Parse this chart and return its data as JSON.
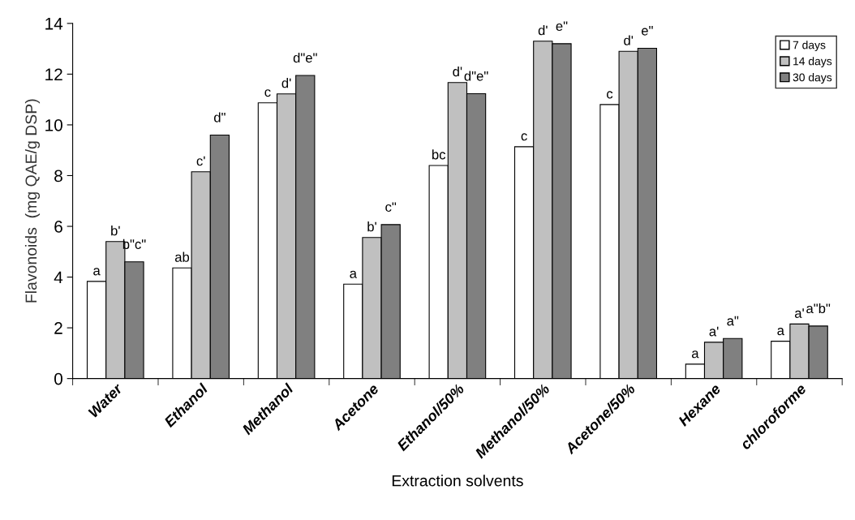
{
  "chart_data": {
    "type": "bar",
    "xlabel": "Extraction solvents",
    "ylabel": "Flavonoids  (mg QAE/g DSP)",
    "categories": [
      "Water",
      "Ethanol",
      "Methanol",
      "Acetone",
      "Ethanol/50%",
      "Methanol/50%",
      "Acetone/50%",
      "Hexane",
      "chloroforme"
    ],
    "series": [
      {
        "name": "7 days",
        "color": "#ffffff",
        "values": [
          3.83,
          4.36,
          10.87,
          3.72,
          8.4,
          9.14,
          10.8,
          0.57,
          1.47
        ],
        "value_labels": [
          "a",
          "ab",
          "c",
          "a",
          "bc",
          "c",
          "c",
          "a",
          "a"
        ]
      },
      {
        "name": "14 days",
        "color": "#c0c0c0",
        "values": [
          5.4,
          8.15,
          11.22,
          5.56,
          11.67,
          13.3,
          12.9,
          1.43,
          2.15
        ],
        "value_labels": [
          "b'",
          "c'",
          "d'",
          "b'",
          "d'",
          "d'",
          "d'",
          "a'",
          "a'"
        ]
      },
      {
        "name": "30 days",
        "color": "#808080",
        "values": [
          4.6,
          9.6,
          11.95,
          6.07,
          11.23,
          13.2,
          13.02,
          1.58,
          2.07
        ],
        "value_labels": [
          "b\"c\"",
          "d\"",
          "d\"e\"",
          "c\"",
          "d\"e\"",
          "e\"",
          "e\"",
          "a\"",
          "a\"b\""
        ]
      }
    ],
    "ylim": [
      0,
      14
    ],
    "yticks": [
      0,
      2,
      4,
      6,
      8,
      10,
      12,
      14
    ],
    "grid": false,
    "legend": "top right"
  }
}
